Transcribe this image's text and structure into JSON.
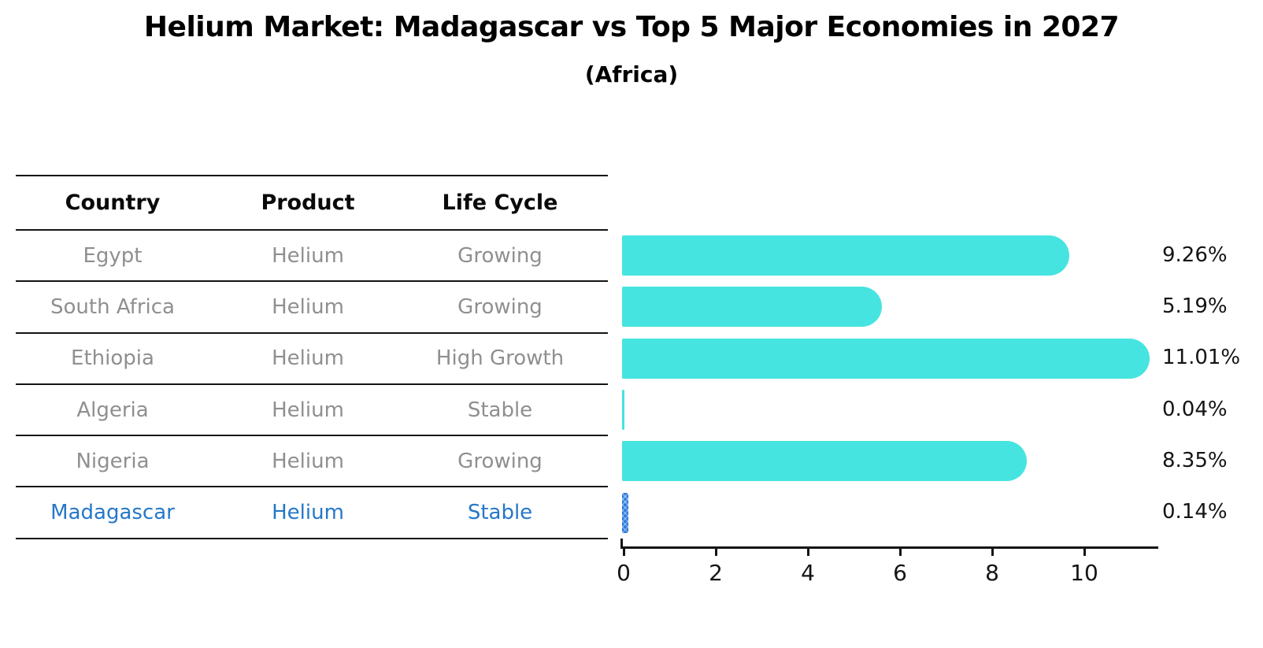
{
  "header": {
    "title": "Helium Market: Madagascar vs Top 5 Major Economies in 2027",
    "subtitle": "(Africa)"
  },
  "table": {
    "columns": [
      "Country",
      "Product",
      "Life Cycle"
    ],
    "rows": [
      {
        "country": "Egypt",
        "product": "Helium",
        "life_cycle": "Growing",
        "highlight": false
      },
      {
        "country": "South Africa",
        "product": "Helium",
        "life_cycle": "Growing",
        "highlight": false
      },
      {
        "country": "Ethiopia",
        "product": "Helium",
        "life_cycle": "High Growth",
        "highlight": false
      },
      {
        "country": "Algeria",
        "product": "Helium",
        "life_cycle": "Stable",
        "highlight": false
      },
      {
        "country": "Nigeria",
        "product": "Helium",
        "life_cycle": "Growing",
        "highlight": false
      },
      {
        "country": "Madagascar",
        "product": "Helium",
        "life_cycle": "Stable",
        "highlight": true
      }
    ]
  },
  "chart_data": {
    "type": "bar",
    "orientation": "horizontal",
    "title": "Helium Market: Madagascar vs Top 5 Major Economies in 2027",
    "subtitle": "(Africa)",
    "categories": [
      "Egypt",
      "South Africa",
      "Ethiopia",
      "Algeria",
      "Nigeria",
      "Madagascar"
    ],
    "values": [
      9.26,
      5.19,
      11.01,
      0.04,
      8.35,
      0.14
    ],
    "value_labels": [
      "9.26%",
      "5.19%",
      "11.01%",
      "0.04%",
      "8.35%",
      "0.14%"
    ],
    "highlight_category": "Madagascar",
    "x_ticks": [
      0,
      2,
      4,
      6,
      8,
      10
    ],
    "xlim": [
      0,
      11.6
    ],
    "grid": false,
    "legend": "none",
    "colors": {
      "bar": "#46e4e0",
      "highlight_bar": "#2b79dc",
      "row_text": "#8f8f8f",
      "highlight_text": "#2577c8",
      "axis": "#141414"
    }
  }
}
